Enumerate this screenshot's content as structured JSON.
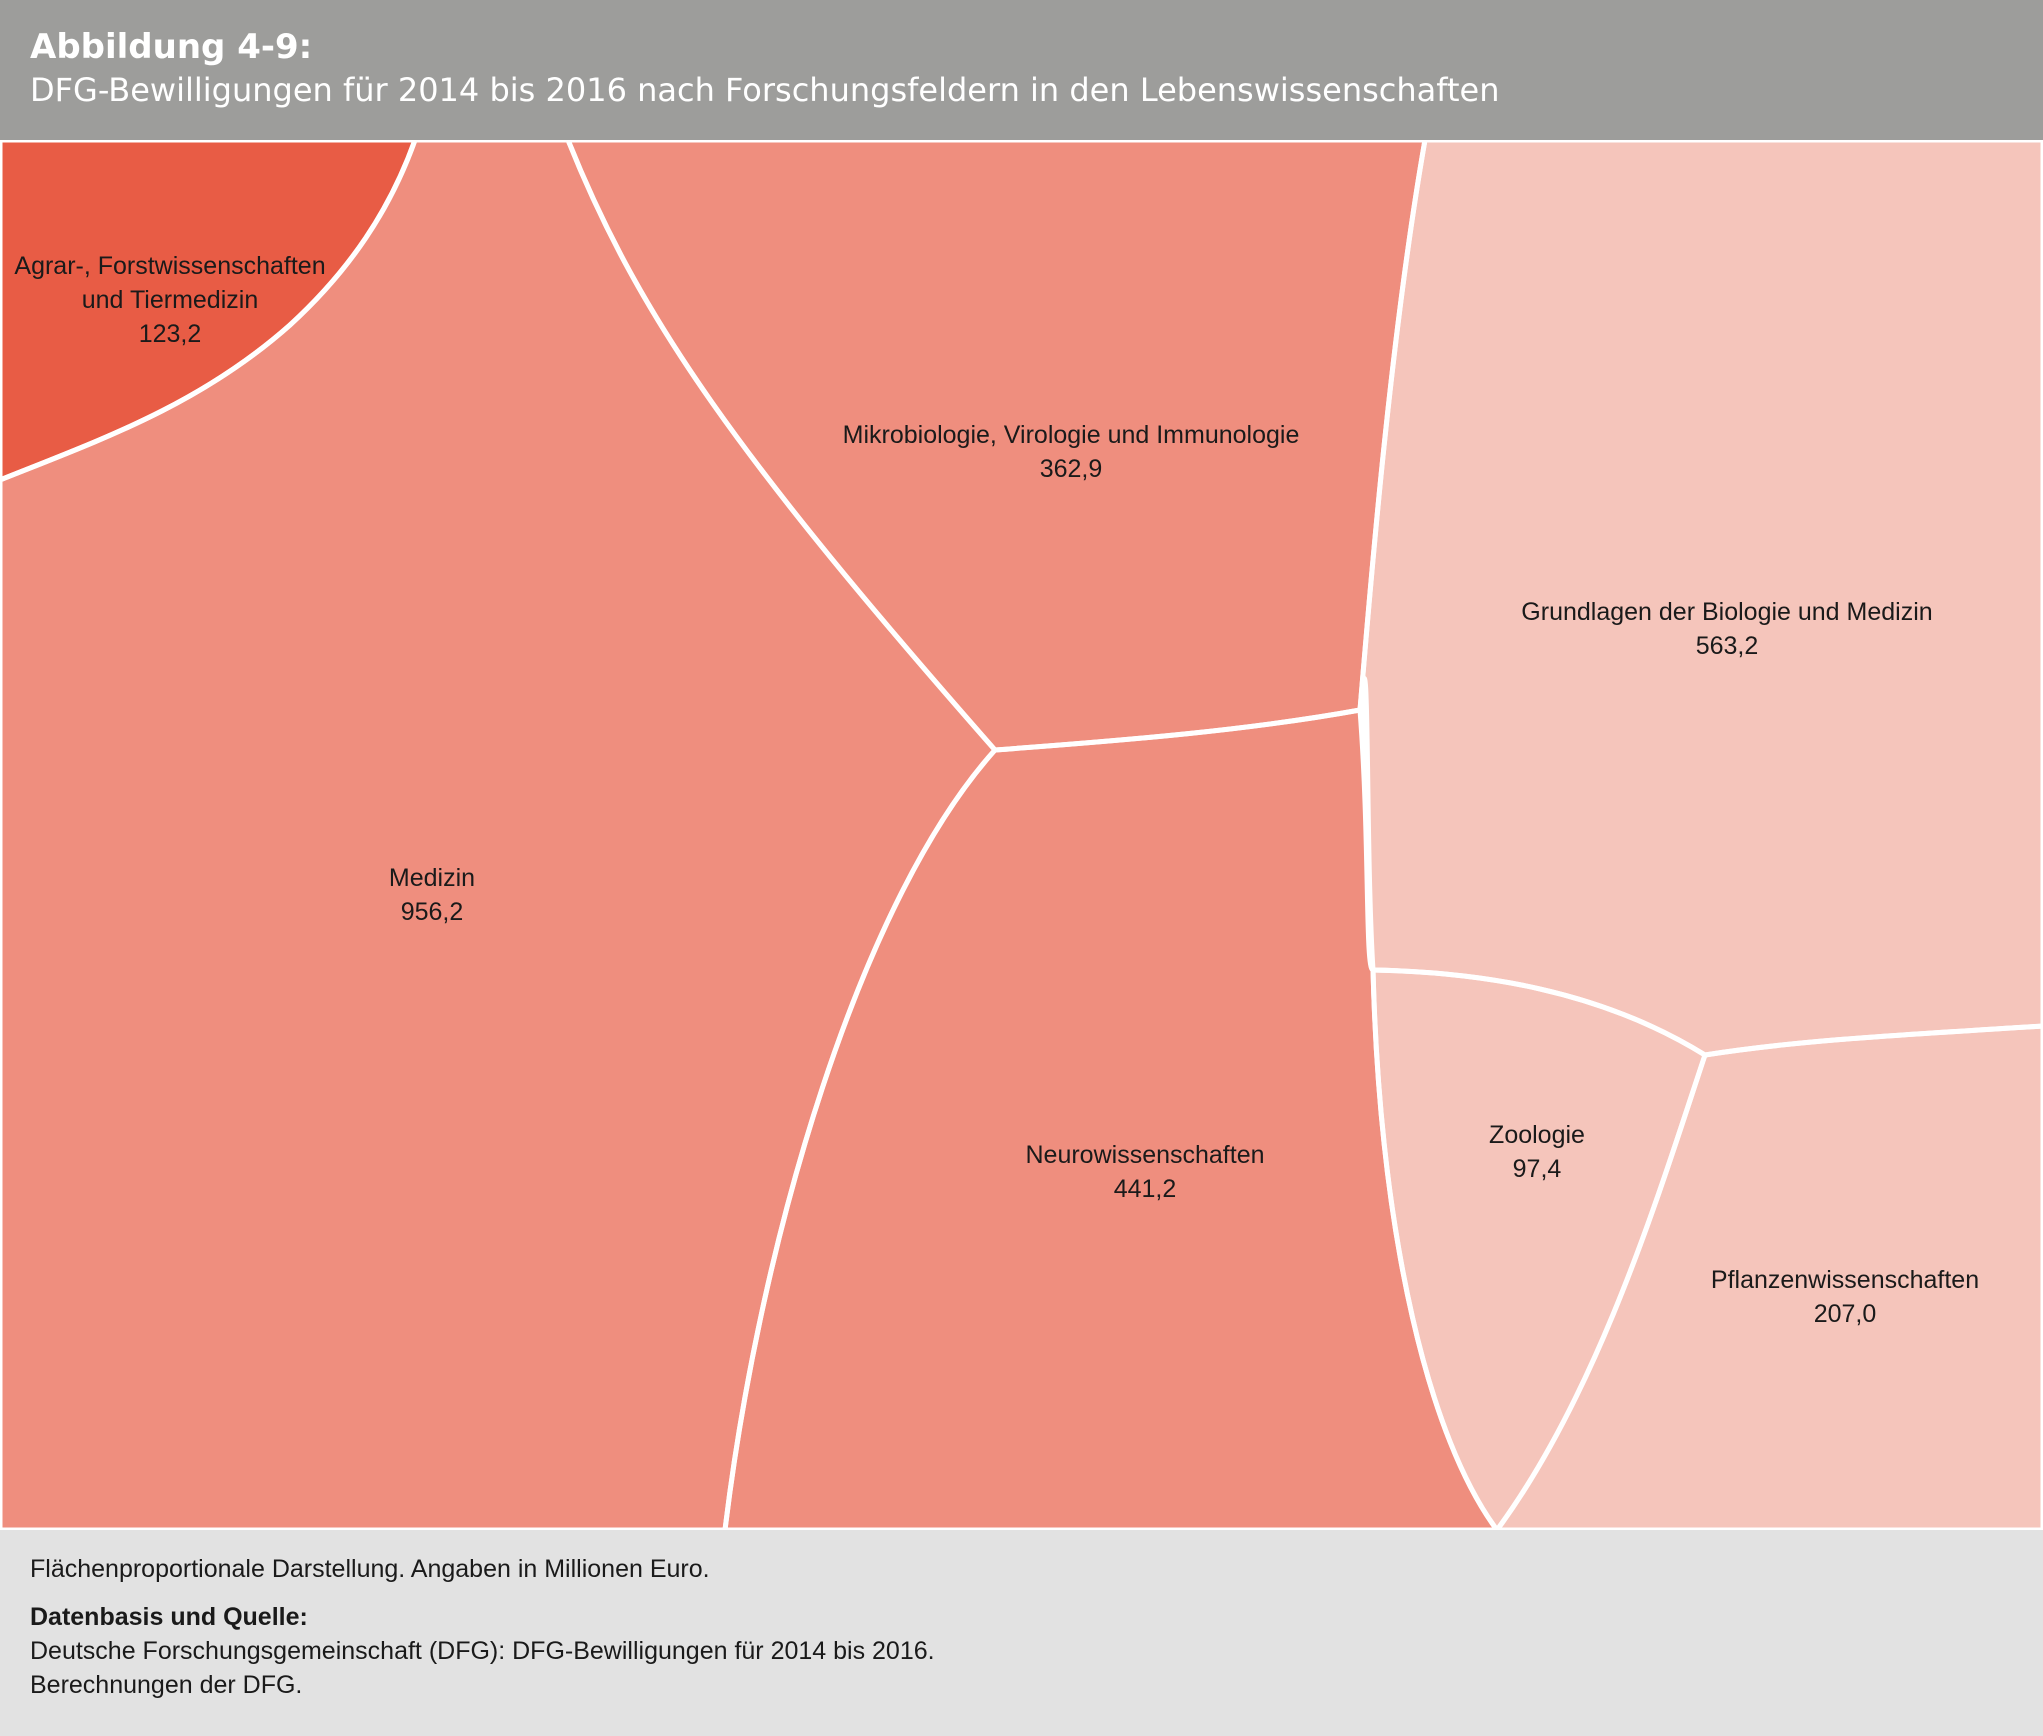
{
  "header": {
    "number": "Abbildung 4-9:",
    "title": "DFG-Bewilligungen für 2014 bis 2016 nach Forschungsfeldern in den Lebenswissenschaften"
  },
  "chart_data": {
    "type": "treemap",
    "cells": [
      {
        "name_lines": [
          "Agrar-, Forstwissenschaften",
          "und Tiermedizin"
        ],
        "value": 123.2,
        "value_label": "123,2",
        "color": "#e85c45"
      },
      {
        "name_lines": [
          "Medizin"
        ],
        "value": 956.2,
        "value_label": "956,2",
        "color": "#ef8e7e"
      },
      {
        "name_lines": [
          "Mikrobiologie, Virologie und Immunologie"
        ],
        "value": 362.9,
        "value_label": "362,9",
        "color": "#ef8e7e"
      },
      {
        "name_lines": [
          "Neurowissenschaften"
        ],
        "value": 441.2,
        "value_label": "441,2",
        "color": "#ef8e7e"
      },
      {
        "name_lines": [
          "Grundlagen der Biologie und Medizin"
        ],
        "value": 563.2,
        "value_label": "563,2",
        "color": "#f5c5bb"
      },
      {
        "name_lines": [
          "Zoologie"
        ],
        "value": 97.4,
        "value_label": "97,4",
        "color": "#f5c5bb"
      },
      {
        "name_lines": [
          "Pflanzenwissenschaften"
        ],
        "value": 207.0,
        "value_label": "207,0",
        "color": "#f5c5bb"
      }
    ]
  },
  "footer": {
    "note": "Flächenproportionale Darstellung. Angaben in Millionen Euro.",
    "source_heading": "Datenbasis und Quelle:",
    "source_lines": [
      "Deutsche Forschungsgemeinschaft (DFG): DFG-Bewilligungen für 2014 bis 2016.",
      "Berechnungen der DFG."
    ]
  }
}
